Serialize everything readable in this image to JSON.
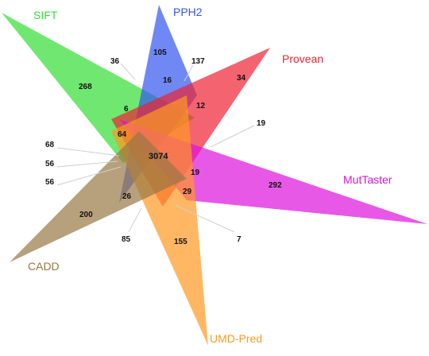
{
  "sets": [
    {
      "key": "sift",
      "name": "SIFT",
      "color": "#33dd33"
    },
    {
      "key": "pph2",
      "name": "PPH2",
      "color": "#3355ee"
    },
    {
      "key": "provean",
      "name": "Provean",
      "color": "#ee2233"
    },
    {
      "key": "muttaster",
      "name": "MutTaster",
      "color": "#dd11dd"
    },
    {
      "key": "umd",
      "name": "UMD-Pred",
      "color": "#ff9922"
    },
    {
      "key": "cadd",
      "name": "CADD",
      "color": "#997744"
    }
  ],
  "counts": {
    "sift_only": "268",
    "pph2_only": "105",
    "provean_only": "34",
    "muttaster_only": "292",
    "umd_only": "155",
    "cadd_only": "200",
    "c36": "36",
    "c137": "137",
    "c16": "16",
    "c6": "6",
    "c12": "12",
    "c19a": "19",
    "c64": "64",
    "c68": "68",
    "c56a": "56",
    "c56b": "56",
    "center": "3074",
    "c19b": "19",
    "c26": "26",
    "c29": "29",
    "c85": "85",
    "c7": "7"
  }
}
